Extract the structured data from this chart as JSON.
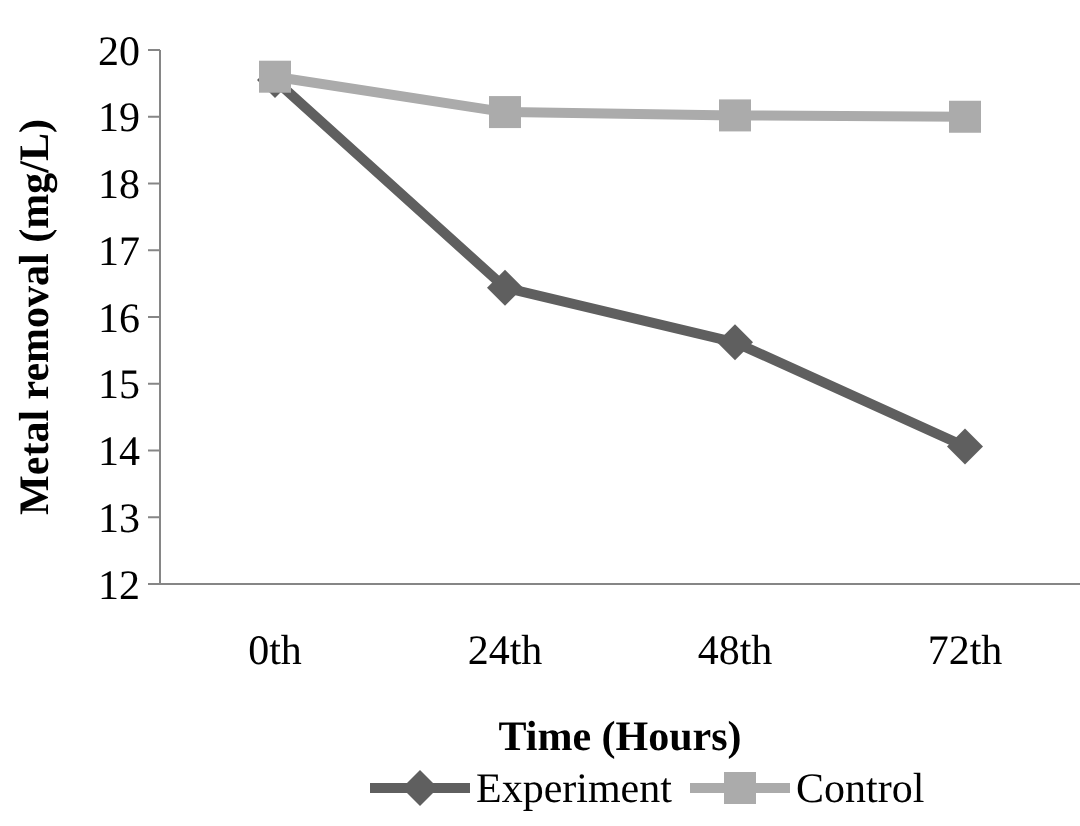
{
  "chart_data": {
    "type": "line",
    "xlabel": "Time (Hours)",
    "ylabel": "Metal removal (mg/L)",
    "categories": [
      "0th",
      "24th",
      "48th",
      "72th"
    ],
    "series": [
      {
        "name": "Experiment",
        "color": "#5f5f5f",
        "marker": "diamond",
        "values": [
          19.55,
          16.44,
          15.62,
          14.06
        ]
      },
      {
        "name": "Control",
        "color": "#ababab",
        "marker": "square",
        "values": [
          19.6,
          19.07,
          19.02,
          19.0
        ]
      }
    ],
    "ylim": [
      12,
      20
    ],
    "yticks": [
      12,
      13,
      14,
      15,
      16,
      17,
      18,
      19,
      20
    ],
    "grid": false,
    "legend": "bottom",
    "line_style": "solid"
  }
}
